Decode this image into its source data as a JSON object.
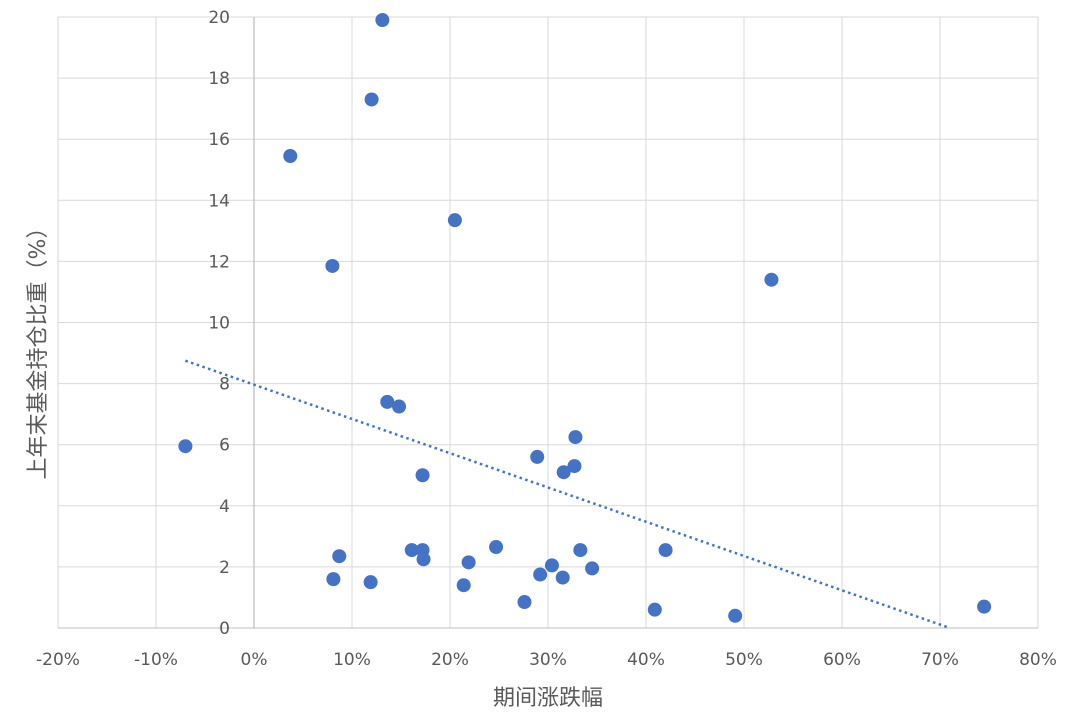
{
  "chart_data": {
    "type": "scatter",
    "title": "",
    "xlabel": "期间涨跌幅",
    "ylabel": "上年末基金持仓比重（%）",
    "xlim": [
      -20,
      80
    ],
    "ylim": [
      0,
      20
    ],
    "x_ticks": [
      "-20%",
      "-10%",
      "0%",
      "10%",
      "20%",
      "30%",
      "40%",
      "50%",
      "60%",
      "70%",
      "80%"
    ],
    "y_ticks": [
      "0",
      "2",
      "4",
      "6",
      "8",
      "10",
      "12",
      "14",
      "16",
      "18",
      "20"
    ],
    "grid": true,
    "marker_color": "#4472C4",
    "trendline": {
      "type": "linear",
      "style": "dotted",
      "x": [
        -7,
        71
      ],
      "y": [
        8.75,
        0
      ]
    },
    "points": [
      {
        "x": -7.0,
        "y": 5.95
      },
      {
        "x": 3.7,
        "y": 15.45
      },
      {
        "x": 8.0,
        "y": 11.85
      },
      {
        "x": 8.1,
        "y": 1.6
      },
      {
        "x": 8.7,
        "y": 2.35
      },
      {
        "x": 11.9,
        "y": 1.5
      },
      {
        "x": 12.0,
        "y": 17.3
      },
      {
        "x": 13.1,
        "y": 19.9
      },
      {
        "x": 13.6,
        "y": 7.4
      },
      {
        "x": 14.8,
        "y": 7.25
      },
      {
        "x": 16.1,
        "y": 2.55
      },
      {
        "x": 17.2,
        "y": 2.55
      },
      {
        "x": 17.3,
        "y": 2.25
      },
      {
        "x": 17.2,
        "y": 5.0
      },
      {
        "x": 20.5,
        "y": 13.35
      },
      {
        "x": 21.4,
        "y": 1.4
      },
      {
        "x": 21.9,
        "y": 2.15
      },
      {
        "x": 24.7,
        "y": 2.65
      },
      {
        "x": 27.6,
        "y": 0.85
      },
      {
        "x": 28.9,
        "y": 5.6
      },
      {
        "x": 29.2,
        "y": 1.75
      },
      {
        "x": 30.4,
        "y": 2.05
      },
      {
        "x": 31.5,
        "y": 1.65
      },
      {
        "x": 31.6,
        "y": 5.1
      },
      {
        "x": 32.7,
        "y": 5.3
      },
      {
        "x": 32.8,
        "y": 6.25
      },
      {
        "x": 33.3,
        "y": 2.55
      },
      {
        "x": 34.5,
        "y": 1.95
      },
      {
        "x": 40.9,
        "y": 0.6
      },
      {
        "x": 42.0,
        "y": 2.55
      },
      {
        "x": 49.1,
        "y": 0.4
      },
      {
        "x": 52.8,
        "y": 11.4
      },
      {
        "x": 74.5,
        "y": 0.7
      }
    ]
  }
}
